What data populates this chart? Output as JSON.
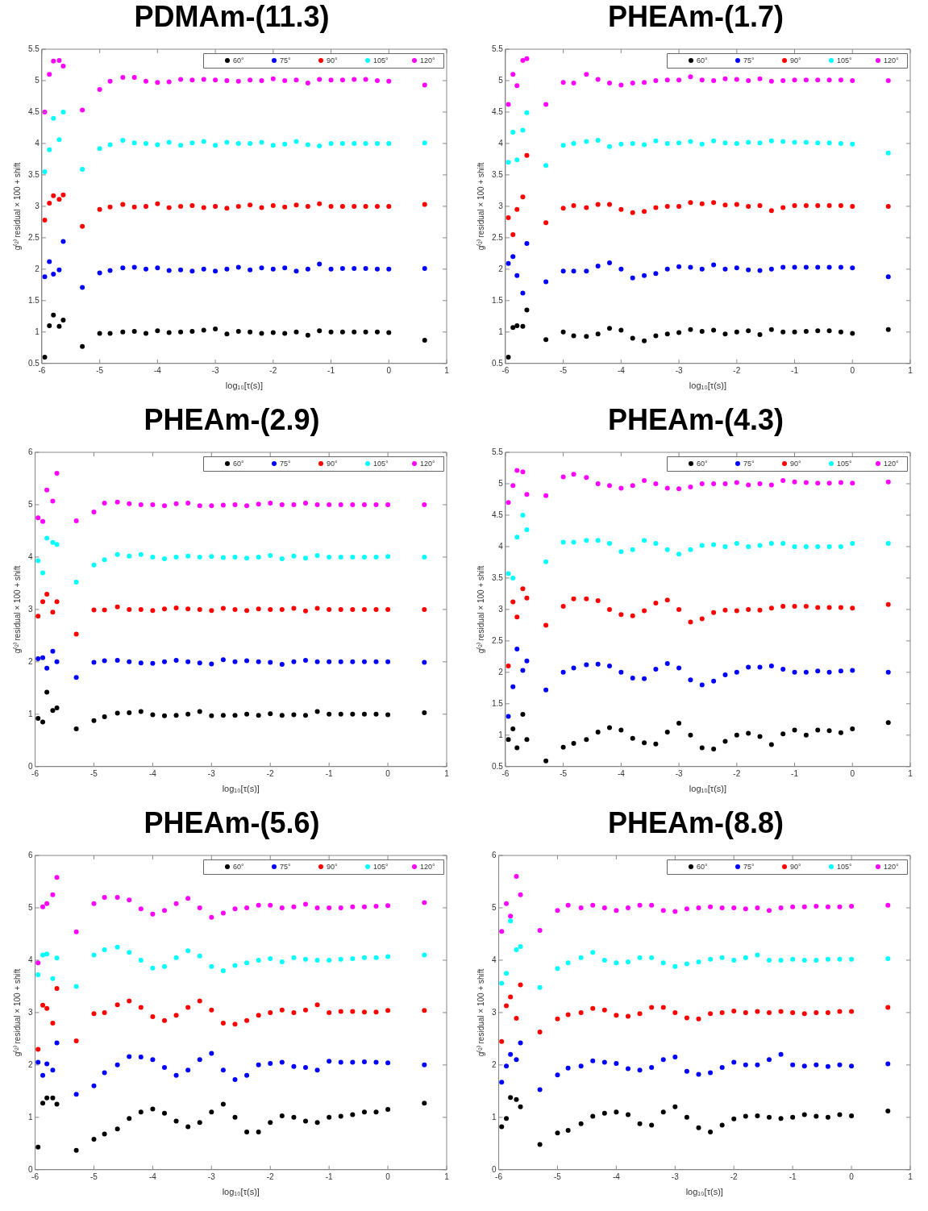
{
  "chart_data": [
    {
      "type": "scatter",
      "title": "PDMAm-(11.3)",
      "xlabel": "log₁₀[τ(s)]",
      "ylabel": "g⁽²⁾ residual × 100 + shift",
      "xlim": [
        -6,
        1
      ],
      "xticks": [
        -6,
        -5,
        -4,
        -3,
        -2,
        -1,
        0,
        1
      ],
      "ylim": [
        0.5,
        5.5
      ],
      "yticks": [
        0.5,
        1,
        1.5,
        2,
        2.5,
        3,
        3.5,
        4,
        4.5,
        5,
        5.5
      ],
      "grid": false,
      "legend": "top right",
      "marker": "circle",
      "x": [
        -5.95,
        -5.87,
        -5.8,
        -5.7,
        -5.63,
        -5.3,
        -5,
        -4.82,
        -4.6,
        -4.4,
        -4.2,
        -4,
        -3.8,
        -3.6,
        -3.4,
        -3.2,
        -3,
        -2.8,
        -2.6,
        -2.4,
        -2.2,
        -2,
        -1.8,
        -1.6,
        -1.4,
        -1.2,
        -1,
        -0.8,
        -0.6,
        -0.4,
        -0.2,
        0,
        0.62
      ],
      "series": [
        {
          "name": "60°",
          "color": "#000000",
          "values": [
            0.6,
            1.1,
            1.27,
            1.09,
            1.19,
            0.77,
            0.98,
            0.98,
            1.0,
            1.01,
            0.98,
            1.02,
            0.99,
            1.0,
            1.01,
            1.03,
            1.05,
            0.97,
            1.01,
            1.0,
            0.98,
            0.99,
            0.98,
            1.0,
            0.95,
            1.02,
            1.0,
            1.0,
            1.0,
            1.0,
            1.0,
            0.99,
            0.87
          ]
        },
        {
          "name": "75°",
          "color": "#0000ff",
          "values": [
            1.88,
            2.12,
            1.92,
            1.99,
            2.44,
            1.71,
            1.94,
            1.98,
            2.02,
            2.03,
            2.0,
            2.02,
            1.98,
            1.99,
            1.97,
            2.0,
            1.97,
            2.0,
            2.03,
            1.99,
            2.02,
            2.0,
            2.02,
            1.97,
            2.0,
            2.08,
            2.0,
            2.01,
            2.01,
            2.01,
            2.0,
            2.0,
            2.01
          ]
        },
        {
          "name": "90°",
          "color": "#ff0000",
          "values": [
            2.78,
            3.05,
            3.17,
            3.11,
            3.18,
            2.68,
            2.95,
            2.99,
            3.03,
            2.99,
            3.0,
            3.04,
            2.98,
            3.0,
            3.01,
            2.98,
            3.0,
            2.97,
            3.0,
            3.02,
            2.98,
            3.01,
            2.99,
            3.02,
            3.0,
            3.04,
            3.0,
            3.0,
            3.0,
            3.0,
            3.0,
            3.0,
            3.03
          ]
        },
        {
          "name": "105°",
          "color": "#00ffff",
          "values": [
            3.55,
            3.9,
            4.4,
            4.06,
            4.5,
            3.59,
            3.92,
            3.98,
            4.05,
            4.01,
            4.0,
            3.98,
            4.02,
            3.97,
            4.01,
            4.03,
            3.97,
            4.02,
            4.0,
            4.0,
            4.02,
            3.97,
            3.99,
            4.03,
            3.98,
            3.96,
            4.0,
            4.0,
            4.0,
            4.0,
            4.0,
            4.0,
            4.01
          ]
        },
        {
          "name": "120°",
          "color": "#ff00ff",
          "values": [
            4.5,
            5.1,
            5.31,
            5.32,
            5.23,
            4.53,
            4.86,
            4.99,
            5.05,
            5.05,
            4.99,
            4.97,
            4.98,
            5.02,
            5.01,
            5.02,
            5.01,
            5.0,
            4.99,
            5.01,
            5.0,
            5.03,
            5.0,
            5.01,
            4.96,
            5.02,
            5.01,
            5.01,
            5.02,
            5.02,
            5.0,
            4.99,
            4.93
          ]
        }
      ]
    },
    {
      "type": "scatter",
      "title": "PHEAm-(1.7)",
      "xlabel": "log₁₀[τ(s)]",
      "ylabel": "g⁽²⁾ residual × 100 + shift",
      "xlim": [
        -6,
        1
      ],
      "xticks": [
        -6,
        -5,
        -4,
        -3,
        -2,
        -1,
        0,
        1
      ],
      "ylim": [
        0.5,
        5.5
      ],
      "yticks": [
        0.5,
        1,
        1.5,
        2,
        2.5,
        3,
        3.5,
        4,
        4.5,
        5,
        5.5
      ],
      "grid": false,
      "legend": "top right",
      "marker": "circle",
      "x": [
        -5.95,
        -5.87,
        -5.8,
        -5.7,
        -5.63,
        -5.3,
        -5,
        -4.82,
        -4.6,
        -4.4,
        -4.2,
        -4,
        -3.8,
        -3.6,
        -3.4,
        -3.2,
        -3,
        -2.8,
        -2.6,
        -2.4,
        -2.2,
        -2,
        -1.8,
        -1.6,
        -1.4,
        -1.2,
        -1,
        -0.8,
        -0.6,
        -0.4,
        -0.2,
        0,
        0.62
      ],
      "series": [
        {
          "name": "60°",
          "color": "#000000",
          "values": [
            0.6,
            1.07,
            1.1,
            1.09,
            1.35,
            0.88,
            1.0,
            0.94,
            0.93,
            0.97,
            1.06,
            1.03,
            0.9,
            0.86,
            0.94,
            0.97,
            0.99,
            1.04,
            1.01,
            1.03,
            0.97,
            1.0,
            1.02,
            0.96,
            1.04,
            1.0,
            1.0,
            1.01,
            1.02,
            1.02,
            1.0,
            0.98,
            1.04
          ]
        },
        {
          "name": "75°",
          "color": "#0000ff",
          "values": [
            2.09,
            2.2,
            1.9,
            1.62,
            2.41,
            1.8,
            1.97,
            1.97,
            1.97,
            2.05,
            2.1,
            2.0,
            1.86,
            1.9,
            1.93,
            2.0,
            2.04,
            2.03,
            2.0,
            2.07,
            2.0,
            2.02,
            1.99,
            1.98,
            2.0,
            2.03,
            2.03,
            2.03,
            2.03,
            2.03,
            2.03,
            2.02,
            1.88
          ]
        },
        {
          "name": "90°",
          "color": "#ff0000",
          "values": [
            2.82,
            2.55,
            2.95,
            3.15,
            3.81,
            2.74,
            2.97,
            3.01,
            2.98,
            3.03,
            3.03,
            2.95,
            2.9,
            2.92,
            2.98,
            3.0,
            3.0,
            3.06,
            3.04,
            3.06,
            3.02,
            3.03,
            3.0,
            3.01,
            2.93,
            2.98,
            3.01,
            3.01,
            3.01,
            3.01,
            3.01,
            3.0,
            3.0
          ]
        },
        {
          "name": "105°",
          "color": "#00ffff",
          "values": [
            3.7,
            4.18,
            3.74,
            4.21,
            4.49,
            3.65,
            3.97,
            4.0,
            4.03,
            4.05,
            3.95,
            3.99,
            4.0,
            3.98,
            4.04,
            4.0,
            4.01,
            4.03,
            3.99,
            4.04,
            4.01,
            4.0,
            4.02,
            4.01,
            4.04,
            4.03,
            4.02,
            4.02,
            4.01,
            4.01,
            4.0,
            3.99,
            3.85
          ]
        },
        {
          "name": "120°",
          "color": "#ff00ff",
          "values": [
            4.62,
            5.1,
            4.92,
            5.32,
            5.35,
            4.62,
            4.97,
            4.96,
            5.1,
            5.02,
            4.96,
            4.93,
            4.96,
            4.97,
            5.0,
            5.01,
            5.01,
            5.06,
            5.01,
            5.0,
            5.03,
            5.02,
            5.0,
            5.03,
            4.99,
            5.0,
            5.01,
            5.01,
            5.01,
            5.01,
            5.01,
            5.0,
            5.0
          ]
        }
      ]
    },
    {
      "type": "scatter",
      "title": "PHEAm-(2.9)",
      "xlabel": "log₁₀[τ(s)]",
      "ylabel": "g⁽²⁾ residual × 100 + shift",
      "xlim": [
        -6,
        1
      ],
      "xticks": [
        -6,
        -5,
        -4,
        -3,
        -2,
        -1,
        0,
        1
      ],
      "ylim": [
        0,
        6
      ],
      "yticks": [
        0,
        1,
        2,
        3,
        4,
        5,
        6
      ],
      "grid": false,
      "legend": "top right",
      "marker": "circle",
      "x": [
        -5.95,
        -5.87,
        -5.8,
        -5.7,
        -5.63,
        -5.3,
        -5,
        -4.82,
        -4.6,
        -4.4,
        -4.2,
        -4,
        -3.8,
        -3.6,
        -3.4,
        -3.2,
        -3,
        -2.8,
        -2.6,
        -2.4,
        -2.2,
        -2,
        -1.8,
        -1.6,
        -1.4,
        -1.2,
        -1,
        -0.8,
        -0.6,
        -0.4,
        -0.2,
        0,
        0.62
      ],
      "series": [
        {
          "name": "60°",
          "color": "#000000",
          "values": [
            0.92,
            0.85,
            1.42,
            1.07,
            1.12,
            0.72,
            0.88,
            0.95,
            1.02,
            1.03,
            1.05,
            0.99,
            0.97,
            0.98,
            1.0,
            1.05,
            0.97,
            0.98,
            0.98,
            1.0,
            0.98,
            1.01,
            0.98,
            0.99,
            0.98,
            1.05,
            1.0,
            1.0,
            1.0,
            1.0,
            1.0,
            0.99,
            1.03
          ]
        },
        {
          "name": "75°",
          "color": "#0000ff",
          "values": [
            2.06,
            2.08,
            1.88,
            2.2,
            2.0,
            1.7,
            1.99,
            2.02,
            2.03,
            2.0,
            1.98,
            1.97,
            2.0,
            2.03,
            2.0,
            1.98,
            1.96,
            2.04,
            2.0,
            2.02,
            2.0,
            1.99,
            1.95,
            2.0,
            2.03,
            2.0,
            2.0,
            2.0,
            2.0,
            2.0,
            2.0,
            2.0,
            1.99
          ]
        },
        {
          "name": "90°",
          "color": "#ff0000",
          "values": [
            2.87,
            3.15,
            3.29,
            2.95,
            3.15,
            2.53,
            2.99,
            2.99,
            3.05,
            3.0,
            3.0,
            2.98,
            3.01,
            3.03,
            3.01,
            3.0,
            2.98,
            3.02,
            3.0,
            2.98,
            3.01,
            3.0,
            3.0,
            3.02,
            2.97,
            3.02,
            3.0,
            3.0,
            3.0,
            3.0,
            3.0,
            3.0,
            3.0
          ]
        },
        {
          "name": "105°",
          "color": "#00ffff",
          "values": [
            3.93,
            3.7,
            4.36,
            4.28,
            4.24,
            3.52,
            3.85,
            3.95,
            4.05,
            4.02,
            4.05,
            4.0,
            3.97,
            4.0,
            4.02,
            4.0,
            4.01,
            3.99,
            4.0,
            3.98,
            4.0,
            4.03,
            3.97,
            4.02,
            3.98,
            4.03,
            4.0,
            4.0,
            4.0,
            4.0,
            4.0,
            4.01,
            4.0
          ]
        },
        {
          "name": "120°",
          "color": "#ff00ff",
          "values": [
            4.75,
            4.68,
            5.28,
            5.07,
            5.6,
            4.69,
            4.86,
            5.03,
            5.05,
            5.02,
            5.0,
            5.0,
            4.98,
            5.02,
            5.03,
            4.98,
            4.98,
            4.99,
            5.0,
            4.98,
            5.01,
            5.03,
            5.0,
            5.0,
            5.03,
            5.0,
            5.0,
            5.0,
            5.0,
            5.0,
            5.0,
            5.0,
            5.0
          ]
        }
      ]
    },
    {
      "type": "scatter",
      "title": "PHEAm-(4.3)",
      "xlabel": "log₁₀[τ(s)]",
      "ylabel": "g⁽²⁾ residual × 100 + shift",
      "xlim": [
        -6,
        1
      ],
      "xticks": [
        -6,
        -5,
        -4,
        -3,
        -2,
        -1,
        0,
        1
      ],
      "ylim": [
        0.5,
        5.5
      ],
      "yticks": [
        0.5,
        1,
        1.5,
        2,
        2.5,
        3,
        3.5,
        4,
        4.5,
        5,
        5.5
      ],
      "grid": false,
      "legend": "top right",
      "marker": "circle",
      "x": [
        -5.95,
        -5.87,
        -5.8,
        -5.7,
        -5.63,
        -5.3,
        -5,
        -4.82,
        -4.6,
        -4.4,
        -4.2,
        -4,
        -3.8,
        -3.6,
        -3.4,
        -3.2,
        -3,
        -2.8,
        -2.6,
        -2.4,
        -2.2,
        -2,
        -1.8,
        -1.6,
        -1.4,
        -1.2,
        -1,
        -0.8,
        -0.6,
        -0.4,
        -0.2,
        0,
        0.62
      ],
      "series": [
        {
          "name": "60°",
          "color": "#000000",
          "values": [
            0.93,
            1.1,
            0.8,
            1.33,
            0.93,
            0.59,
            0.81,
            0.87,
            0.93,
            1.05,
            1.12,
            1.08,
            0.95,
            0.88,
            0.86,
            1.05,
            1.19,
            1.0,
            0.8,
            0.78,
            0.9,
            1.0,
            1.03,
            0.98,
            0.85,
            1.02,
            1.08,
            1.0,
            1.08,
            1.07,
            1.04,
            1.1,
            1.2
          ]
        },
        {
          "name": "75°",
          "color": "#0000ff",
          "values": [
            1.3,
            1.77,
            2.37,
            2.03,
            2.18,
            1.72,
            2.0,
            2.07,
            2.12,
            2.13,
            2.1,
            2.0,
            1.91,
            1.9,
            2.05,
            2.14,
            2.07,
            1.88,
            1.8,
            1.86,
            1.96,
            2.0,
            2.08,
            2.08,
            2.1,
            2.05,
            2.0,
            2.0,
            2.02,
            2.0,
            2.02,
            2.03,
            2.0
          ]
        },
        {
          "name": "90°",
          "color": "#ff0000",
          "values": [
            2.1,
            3.12,
            2.88,
            3.33,
            3.18,
            2.75,
            3.05,
            3.17,
            3.17,
            3.14,
            3.0,
            2.92,
            2.9,
            2.98,
            3.1,
            3.15,
            3.0,
            2.8,
            2.85,
            2.95,
            2.99,
            2.98,
            3.0,
            2.99,
            3.02,
            3.05,
            3.05,
            3.05,
            3.03,
            3.03,
            3.03,
            3.02,
            3.08
          ]
        },
        {
          "name": "105°",
          "color": "#00ffff",
          "values": [
            3.57,
            3.5,
            4.15,
            4.5,
            4.27,
            3.76,
            4.07,
            4.07,
            4.1,
            4.1,
            4.05,
            3.92,
            3.95,
            4.1,
            4.05,
            3.95,
            3.88,
            3.95,
            4.02,
            4.03,
            4.0,
            4.05,
            4.0,
            4.02,
            4.05,
            4.05,
            4.0,
            4.0,
            4.0,
            4.0,
            4.0,
            4.05,
            4.05
          ]
        },
        {
          "name": "120°",
          "color": "#ff00ff",
          "values": [
            4.7,
            4.97,
            5.21,
            5.19,
            4.83,
            4.81,
            5.11,
            5.15,
            5.1,
            5.0,
            4.97,
            4.93,
            4.97,
            5.05,
            5.0,
            4.93,
            4.92,
            4.95,
            5.0,
            5.0,
            5.0,
            5.02,
            4.98,
            5.0,
            4.98,
            5.05,
            5.03,
            5.02,
            5.01,
            5.01,
            5.02,
            5.01,
            5.03
          ]
        }
      ]
    },
    {
      "type": "scatter",
      "title": "PHEAm-(5.6)",
      "xlabel": "log₁₀[τ(s)]",
      "ylabel": "g⁽²⁾ residual × 100 + shift",
      "xlim": [
        -6,
        1
      ],
      "xticks": [
        -6,
        -5,
        -4,
        -3,
        -2,
        -1,
        0,
        1
      ],
      "ylim": [
        0,
        6
      ],
      "yticks": [
        0,
        1,
        2,
        3,
        4,
        5,
        6
      ],
      "grid": false,
      "legend": "top right",
      "marker": "circle",
      "x": [
        -5.95,
        -5.87,
        -5.8,
        -5.7,
        -5.63,
        -5.3,
        -5,
        -4.82,
        -4.6,
        -4.4,
        -4.2,
        -4,
        -3.8,
        -3.6,
        -3.4,
        -3.2,
        -3,
        -2.8,
        -2.6,
        -2.4,
        -2.2,
        -2,
        -1.8,
        -1.6,
        -1.4,
        -1.2,
        -1,
        -0.8,
        -0.6,
        -0.4,
        -0.2,
        0,
        0.62
      ],
      "series": [
        {
          "name": "60°",
          "color": "#000000",
          "values": [
            0.43,
            1.27,
            1.37,
            1.37,
            1.25,
            0.37,
            0.58,
            0.68,
            0.78,
            0.98,
            1.1,
            1.16,
            1.08,
            0.93,
            0.82,
            0.9,
            1.1,
            1.25,
            1.0,
            0.72,
            0.72,
            0.9,
            1.03,
            1.0,
            0.93,
            0.9,
            1.0,
            1.02,
            1.05,
            1.1,
            1.1,
            1.15,
            1.27
          ]
        },
        {
          "name": "75°",
          "color": "#0000ff",
          "values": [
            2.05,
            1.8,
            2.02,
            1.9,
            2.42,
            1.44,
            1.6,
            1.85,
            2.0,
            2.16,
            2.15,
            2.1,
            1.95,
            1.8,
            1.9,
            2.1,
            2.22,
            1.9,
            1.72,
            1.8,
            2.0,
            2.03,
            2.05,
            1.97,
            1.95,
            1.9,
            2.07,
            2.05,
            2.05,
            2.06,
            2.05,
            2.04,
            2.0
          ]
        },
        {
          "name": "90°",
          "color": "#ff0000",
          "values": [
            2.3,
            3.14,
            3.08,
            2.8,
            3.46,
            2.46,
            2.98,
            3.0,
            3.15,
            3.22,
            3.1,
            2.92,
            2.85,
            2.95,
            3.1,
            3.22,
            3.05,
            2.8,
            2.78,
            2.85,
            2.95,
            3.0,
            3.05,
            3.0,
            3.05,
            3.15,
            3.0,
            3.02,
            3.02,
            3.01,
            3.01,
            3.04,
            3.04
          ]
        },
        {
          "name": "105°",
          "color": "#00ffff",
          "values": [
            3.72,
            4.1,
            4.12,
            3.65,
            4.04,
            3.5,
            4.1,
            4.2,
            4.25,
            4.15,
            4.0,
            3.85,
            3.88,
            4.05,
            4.18,
            4.08,
            3.88,
            3.8,
            3.9,
            3.95,
            4.0,
            4.03,
            3.97,
            4.05,
            4.02,
            4.0,
            4.0,
            4.02,
            4.03,
            4.05,
            4.05,
            4.07,
            4.1
          ]
        },
        {
          "name": "120°",
          "color": "#ff00ff",
          "values": [
            3.95,
            5.02,
            5.08,
            5.25,
            5.58,
            4.54,
            5.08,
            5.2,
            5.2,
            5.15,
            4.98,
            4.88,
            4.95,
            5.08,
            5.18,
            5.0,
            4.82,
            4.9,
            4.98,
            5.0,
            5.05,
            5.05,
            5.0,
            5.02,
            5.07,
            5.0,
            5.0,
            5.0,
            5.02,
            5.02,
            5.03,
            5.04,
            5.1
          ]
        }
      ]
    },
    {
      "type": "scatter",
      "title": "PHEAm-(8.8)",
      "xlabel": "log₁₀[τ(s)]",
      "ylabel": "g⁽²⁾ residual × 100 + shift",
      "xlim": [
        -6,
        1
      ],
      "xticks": [
        -6,
        -5,
        -4,
        -3,
        -2,
        -1,
        0,
        1
      ],
      "ylim": [
        0,
        6
      ],
      "yticks": [
        0,
        1,
        2,
        3,
        4,
        5,
        6
      ],
      "grid": false,
      "legend": "top right",
      "marker": "circle",
      "x": [
        -5.95,
        -5.87,
        -5.8,
        -5.7,
        -5.63,
        -5.3,
        -5,
        -4.82,
        -4.6,
        -4.4,
        -4.2,
        -4,
        -3.8,
        -3.6,
        -3.4,
        -3.2,
        -3,
        -2.8,
        -2.6,
        -2.4,
        -2.2,
        -2,
        -1.8,
        -1.6,
        -1.4,
        -1.2,
        -1,
        -0.8,
        -0.6,
        -0.4,
        -0.2,
        0,
        0.62
      ],
      "series": [
        {
          "name": "60°",
          "color": "#000000",
          "values": [
            0.82,
            0.98,
            1.38,
            1.34,
            1.2,
            0.48,
            0.7,
            0.75,
            0.88,
            1.02,
            1.08,
            1.1,
            1.05,
            0.88,
            0.85,
            1.1,
            1.2,
            1.0,
            0.8,
            0.72,
            0.85,
            0.97,
            1.02,
            1.03,
            1.0,
            0.98,
            1.0,
            1.05,
            1.02,
            1.0,
            1.05,
            1.03,
            1.12
          ]
        },
        {
          "name": "75°",
          "color": "#0000ff",
          "values": [
            1.67,
            1.98,
            2.2,
            2.1,
            2.42,
            1.53,
            1.81,
            1.94,
            1.98,
            2.08,
            2.05,
            2.03,
            1.93,
            1.9,
            1.95,
            2.1,
            2.15,
            1.88,
            1.82,
            1.85,
            1.95,
            2.05,
            2.0,
            2.0,
            2.1,
            2.2,
            2.0,
            1.98,
            2.0,
            1.97,
            2.0,
            1.98,
            2.02
          ]
        },
        {
          "name": "90°",
          "color": "#ff0000",
          "values": [
            2.45,
            3.13,
            3.3,
            2.89,
            3.53,
            2.63,
            2.88,
            2.96,
            3.0,
            3.08,
            3.05,
            2.95,
            2.93,
            2.98,
            3.1,
            3.1,
            3.0,
            2.9,
            2.88,
            2.98,
            3.0,
            3.03,
            3.0,
            3.02,
            3.0,
            3.02,
            3.0,
            2.98,
            3.0,
            3.0,
            3.02,
            3.02,
            3.1
          ]
        },
        {
          "name": "105°",
          "color": "#00ffff",
          "values": [
            3.56,
            3.75,
            4.75,
            4.2,
            4.26,
            3.48,
            3.84,
            3.95,
            4.05,
            4.15,
            4.0,
            3.95,
            3.97,
            4.05,
            4.05,
            3.95,
            3.88,
            3.93,
            3.97,
            4.02,
            4.05,
            4.0,
            4.05,
            4.1,
            4.0,
            4.0,
            4.02,
            4.0,
            4.0,
            4.02,
            4.02,
            4.02,
            4.03
          ]
        },
        {
          "name": "120°",
          "color": "#ff00ff",
          "values": [
            4.55,
            5.08,
            4.84,
            5.6,
            5.25,
            4.57,
            4.95,
            5.05,
            5.0,
            5.05,
            5.0,
            4.95,
            5.0,
            5.05,
            5.05,
            4.95,
            4.93,
            4.98,
            5.0,
            5.02,
            5.0,
            5.0,
            4.98,
            5.0,
            4.95,
            5.0,
            5.02,
            5.02,
            5.03,
            5.02,
            5.02,
            5.03,
            5.05
          ]
        }
      ]
    }
  ]
}
